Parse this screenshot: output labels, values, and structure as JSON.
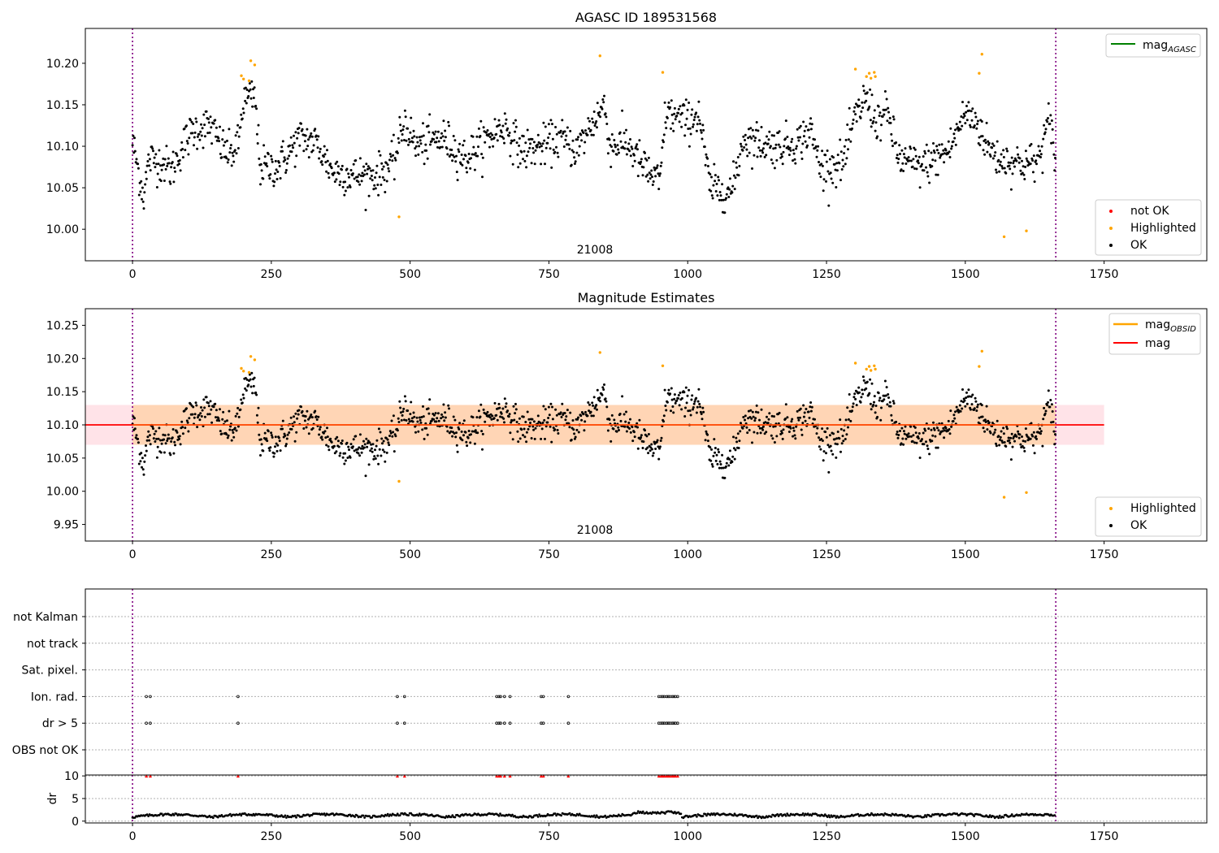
{
  "chart_data": [
    {
      "type": "scatter",
      "title": "AGASC ID 189531568",
      "annotation": "21008",
      "xlim": [
        -85,
        1935
      ],
      "ylim": [
        9.962,
        10.242
      ],
      "xticks": [
        0,
        250,
        500,
        750,
        1000,
        1250,
        1500,
        1750
      ],
      "yticks": [
        10.0,
        10.05,
        10.1,
        10.15,
        10.2
      ],
      "ytick_labels": [
        "10.00",
        "10.05",
        "10.10",
        "10.15",
        "10.20"
      ],
      "vlines_x": [
        0,
        1663
      ],
      "legend_lines": [
        {
          "label": "mag",
          "sub": "AGASC",
          "color": "#008000"
        }
      ],
      "legend_points": [
        {
          "label": "not OK",
          "color": "#ff0000"
        },
        {
          "label": "Highlighted",
          "color": "#ffa500"
        },
        {
          "label": "OK",
          "color": "#000000"
        }
      ],
      "highlighted_points": [
        [
          196,
          10.185
        ],
        [
          200,
          10.181
        ],
        [
          210,
          10.179
        ],
        [
          213,
          10.203
        ],
        [
          220,
          10.198
        ],
        [
          480,
          10.015
        ],
        [
          842,
          10.209
        ],
        [
          955,
          10.189
        ],
        [
          1302,
          10.193
        ],
        [
          1322,
          10.184
        ],
        [
          1327,
          10.188
        ],
        [
          1330,
          10.182
        ],
        [
          1336,
          10.189
        ],
        [
          1338,
          10.184
        ],
        [
          1525,
          10.188
        ],
        [
          1530,
          10.211
        ],
        [
          1570,
          9.991
        ],
        [
          1610,
          9.998
        ]
      ],
      "ok_series_description": "dense time-series of ~1660 samples around mag 10.10 (range 10.02-10.18)"
    },
    {
      "type": "scatter",
      "title": "Magnitude Estimates",
      "annotation": "21008",
      "xlim": [
        -85,
        1935
      ],
      "ylim": [
        9.925,
        10.275
      ],
      "xticks": [
        0,
        250,
        500,
        750,
        1000,
        1250,
        1500,
        1750
      ],
      "yticks": [
        9.95,
        10.0,
        10.05,
        10.1,
        10.15,
        10.2,
        10.25
      ],
      "ytick_labels": [
        "9.95",
        "10.00",
        "10.05",
        "10.10",
        "10.15",
        "10.20",
        "10.25"
      ],
      "vlines_x": [
        0,
        1663
      ],
      "mag_line": {
        "y": 10.1,
        "x_range": [
          -85,
          1750
        ],
        "color": "#ff0000"
      },
      "mag_band": {
        "ylow": 10.07,
        "yhigh": 10.13,
        "x_range": [
          -85,
          1750
        ],
        "color": "#ffc0cb"
      },
      "obsid_band": {
        "ylow": 10.07,
        "yhigh": 10.13,
        "x_range": [
          0,
          1663
        ],
        "color": "#ffa500"
      },
      "legend_lines": [
        {
          "label": "mag",
          "sub": "OBSID",
          "color": "#ffa500"
        },
        {
          "label": "mag",
          "sub": "",
          "color": "#ff0000"
        }
      ],
      "legend_points": [
        {
          "label": "Highlighted",
          "color": "#ffa500"
        },
        {
          "label": "OK",
          "color": "#000000"
        }
      ],
      "highlighted_points": [
        [
          196,
          10.185
        ],
        [
          200,
          10.181
        ],
        [
          210,
          10.179
        ],
        [
          213,
          10.203
        ],
        [
          220,
          10.198
        ],
        [
          480,
          10.015
        ],
        [
          842,
          10.209
        ],
        [
          955,
          10.189
        ],
        [
          1302,
          10.193
        ],
        [
          1322,
          10.184
        ],
        [
          1327,
          10.188
        ],
        [
          1330,
          10.182
        ],
        [
          1336,
          10.189
        ],
        [
          1338,
          10.184
        ],
        [
          1525,
          10.188
        ],
        [
          1530,
          10.211
        ],
        [
          1570,
          9.991
        ],
        [
          1610,
          9.998
        ]
      ]
    },
    {
      "type": "scatter",
      "title": "",
      "xlim": [
        -85,
        1935
      ],
      "categories": [
        "not Kalman",
        "not track",
        "Sat. pixel.",
        "Ion. rad.",
        "dr > 5",
        "OBS not OK"
      ],
      "vlines_x": [
        0,
        1663
      ],
      "flag_x": [
        25,
        32,
        190,
        477,
        490,
        656,
        660,
        663,
        670,
        680,
        736,
        740,
        785,
        948,
        952,
        955,
        958,
        962,
        965,
        968,
        972,
        975,
        978,
        982
      ],
      "flag_rows": [
        "Ion. rad.",
        "dr > 5"
      ]
    },
    {
      "type": "scatter",
      "title": "",
      "ylabel": "dr",
      "xlim": [
        -85,
        1935
      ],
      "ylim": [
        -0.4,
        10.2
      ],
      "xticks": [
        0,
        250,
        500,
        750,
        1000,
        1250,
        1500,
        1750
      ],
      "yticks": [
        0,
        5,
        10
      ],
      "ytick_labels": [
        "0",
        "5",
        "10"
      ],
      "vlines_x": [
        0,
        1663
      ],
      "capped_marker_y": 10,
      "capped_marker_x": [
        25,
        32,
        190,
        477,
        490,
        656,
        660,
        663,
        670,
        680,
        736,
        740,
        785,
        948,
        952,
        955,
        958,
        962,
        965,
        968,
        972,
        975,
        978,
        982
      ]
    }
  ],
  "colors": {
    "ok": "#000000",
    "highlighted": "#ffa500",
    "not_ok": "#ff0000",
    "mag_agasc": "#008000",
    "mag_obsid": "#ffa500",
    "mag": "#ff0000",
    "vline": "#800080"
  }
}
